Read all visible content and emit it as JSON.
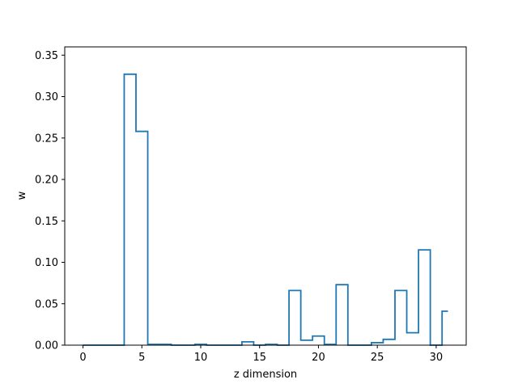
{
  "chart_data": {
    "type": "step",
    "title": "",
    "xlabel": "z dimension",
    "ylabel": "w",
    "xlim": [
      -1.55,
      32.55
    ],
    "ylim": [
      0,
      0.36
    ],
    "xticks": [
      0,
      5,
      10,
      15,
      20,
      25,
      30
    ],
    "yticks": [
      0.0,
      0.05,
      0.1,
      0.15,
      0.2,
      0.25,
      0.3,
      0.35
    ],
    "ytick_labels": [
      "0.00",
      "0.05",
      "0.10",
      "0.15",
      "0.20",
      "0.25",
      "0.30",
      "0.35"
    ],
    "xtick_labels": [
      "0",
      "5",
      "10",
      "15",
      "20",
      "25",
      "30"
    ],
    "grid": false,
    "step_where": "mid",
    "series": [
      {
        "color": "#1f77b4",
        "x": [
          0,
          1,
          2,
          3,
          4,
          5,
          6,
          7,
          8,
          9,
          10,
          11,
          12,
          13,
          14,
          15,
          16,
          17,
          18,
          19,
          20,
          21,
          22,
          23,
          24,
          25,
          26,
          27,
          28,
          29,
          30,
          31
        ],
        "y": [
          0.0,
          0.0,
          0.0,
          0.0,
          0.327,
          0.258,
          0.001,
          0.001,
          0.0,
          0.0,
          0.001,
          0.0,
          0.0,
          0.0,
          0.004,
          0.0,
          0.001,
          0.0,
          0.066,
          0.006,
          0.011,
          0.001,
          0.073,
          0.0,
          0.0,
          0.003,
          0.007,
          0.066,
          0.015,
          0.115,
          0.0,
          0.041
        ]
      }
    ]
  }
}
